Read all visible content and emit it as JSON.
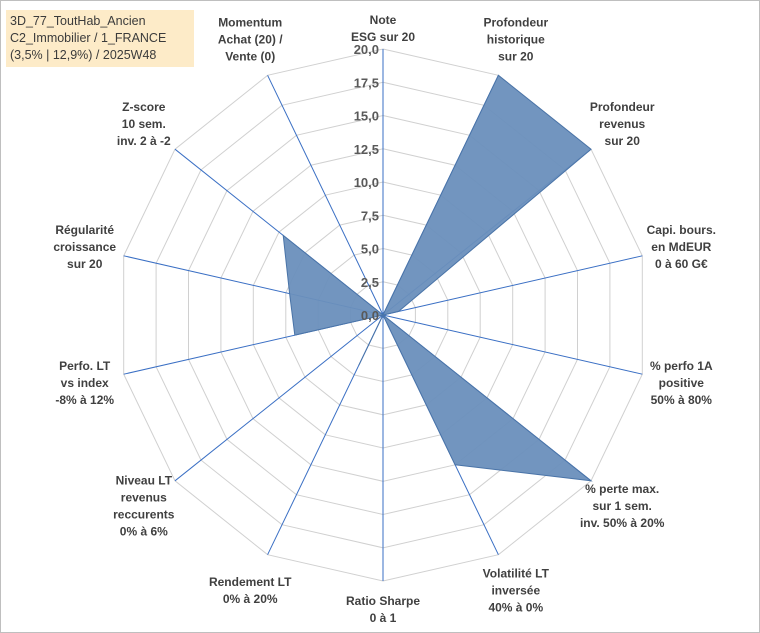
{
  "chart_data": {
    "type": "radar",
    "title": [
      "3D_77_ToutHab_Ancien",
      "C2_Immobilier / 1_FRANCE",
      "(3,5% | 12,9%) / 2025W48"
    ],
    "axes": [
      {
        "label": [
          "Note",
          "ESG sur 20"
        ],
        "value": 0
      },
      {
        "label": [
          "Profondeur",
          "historique",
          "sur 20"
        ],
        "value": 20
      },
      {
        "label": [
          "Profondeur",
          "revenus",
          "sur 20"
        ],
        "value": 20
      },
      {
        "label": [
          "Capi. bours.",
          "en MdEUR",
          "0 à 60 G€"
        ],
        "value": 1.2
      },
      {
        "label": [
          "% perfo 1A",
          "positive",
          "50% à 80%"
        ],
        "value": 0
      },
      {
        "label": [
          "% perte max.",
          "sur 1 sem.",
          "inv. 50% à 20%"
        ],
        "value": 20
      },
      {
        "label": [
          "Volatilité LT",
          "inversée",
          "40% à 0%"
        ],
        "value": 12.5
      },
      {
        "label": [
          "Ratio Sharpe",
          "0 à 1"
        ],
        "value": 0
      },
      {
        "label": [
          "Rendement LT",
          "0% à 20%"
        ],
        "value": 4.2
      },
      {
        "label": [
          "Niveau LT",
          "revenus",
          "reccurents",
          "0% à 6%"
        ],
        "value": 0
      },
      {
        "label": [
          "Perfo. LT",
          "vs index",
          "-8% à 12%"
        ],
        "value": 6.8
      },
      {
        "label": [
          "Régularité",
          "croissance",
          "sur 20"
        ],
        "value": 7.2
      },
      {
        "label": [
          "Z-score",
          "10 sem.",
          "inv. 2 à -2"
        ],
        "value": 9.6
      },
      {
        "label": [
          "Momentum",
          "Achat (20) /",
          "Vente (0)"
        ],
        "value": 0
      }
    ],
    "rmin": 0,
    "rmax": 20,
    "ticks": [
      "0,0",
      "2,5",
      "5,0",
      "7,5",
      "10,0",
      "12,5",
      "15,0",
      "17,5",
      "20,0"
    ],
    "tick_values": [
      0,
      2.5,
      5,
      7.5,
      10,
      12.5,
      15,
      17.5,
      20
    ],
    "fill_color": "#6a8fbc",
    "line_color": "#4a74a8",
    "grid_color": "#d0d0d0",
    "spoke_color": "#3a6fc4"
  }
}
